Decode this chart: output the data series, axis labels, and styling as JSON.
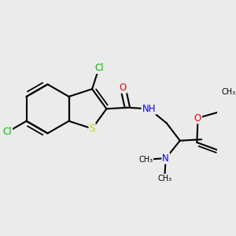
{
  "background_color": "#EBEBEB",
  "bond_color": "#000000",
  "S_color": "#CCCC00",
  "Cl_color": "#00BB00",
  "N_color": "#0000FF",
  "O_color": "#FF0000",
  "C_color": "#000000",
  "bond_width": 1.5,
  "font_size": 8.5,
  "xlim": [
    0.2,
    3.0
  ],
  "ylim": [
    0.4,
    2.8
  ]
}
